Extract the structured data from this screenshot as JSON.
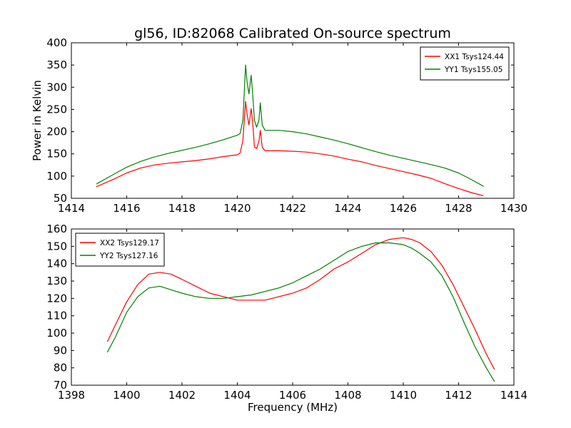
{
  "figure": {
    "title": "gl56, ID:82068 Calibrated On-source spectrum"
  },
  "chart_data": [
    {
      "type": "line",
      "title": "gl56, ID:82068 Calibrated On-source spectrum",
      "xlabel": "",
      "ylabel": "Power in Kelvin",
      "xlim": [
        1414,
        1430
      ],
      "ylim": [
        50,
        400
      ],
      "xticks": [
        "1414",
        "1416",
        "1418",
        "1420",
        "1422",
        "1424",
        "1426",
        "1428",
        "1430"
      ],
      "yticks": [
        "50",
        "100",
        "150",
        "200",
        "250",
        "300",
        "350",
        "400"
      ],
      "grid": false,
      "legend_position": "top-right",
      "series": [
        {
          "name": "XX1 Tsys124.44",
          "color": "#ff0000",
          "x": [
            1414.9,
            1415.5,
            1416.0,
            1416.5,
            1417.0,
            1417.5,
            1418.0,
            1418.5,
            1419.0,
            1419.5,
            1420.0,
            1420.1,
            1420.2,
            1420.3,
            1420.35,
            1420.42,
            1420.5,
            1420.55,
            1420.62,
            1420.7,
            1420.78,
            1420.83,
            1420.9,
            1421.0,
            1421.5,
            1422.0,
            1422.5,
            1423.0,
            1423.5,
            1424.0,
            1424.5,
            1425.0,
            1425.5,
            1426.0,
            1426.5,
            1427.0,
            1427.5,
            1428.0,
            1428.5,
            1428.9
          ],
          "y": [
            76,
            92,
            107,
            118,
            125,
            129,
            132,
            135,
            139,
            144,
            148,
            152,
            180,
            268,
            240,
            215,
            252,
            225,
            165,
            162,
            178,
            203,
            165,
            157,
            157,
            156,
            154,
            150,
            145,
            138,
            132,
            124,
            117,
            110,
            103,
            95,
            83,
            72,
            62,
            56
          ]
        },
        {
          "name": "YY1 Tsys155.05",
          "color": "#008000",
          "x": [
            1414.9,
            1415.5,
            1416.0,
            1416.5,
            1417.0,
            1417.5,
            1418.0,
            1418.5,
            1419.0,
            1419.5,
            1420.0,
            1420.1,
            1420.2,
            1420.3,
            1420.35,
            1420.42,
            1420.5,
            1420.55,
            1420.62,
            1420.7,
            1420.78,
            1420.83,
            1420.9,
            1421.0,
            1421.5,
            1422.0,
            1422.5,
            1423.0,
            1423.5,
            1424.0,
            1424.5,
            1425.0,
            1425.5,
            1426.0,
            1426.5,
            1427.0,
            1427.5,
            1428.0,
            1428.5,
            1428.9
          ],
          "y": [
            82,
            103,
            120,
            133,
            143,
            151,
            158,
            165,
            173,
            182,
            192,
            196,
            225,
            350,
            312,
            285,
            327,
            290,
            225,
            210,
            225,
            265,
            215,
            203,
            203,
            200,
            195,
            188,
            181,
            173,
            164,
            155,
            147,
            140,
            133,
            126,
            118,
            107,
            91,
            77
          ]
        }
      ]
    },
    {
      "type": "line",
      "title": "",
      "xlabel": "Frequency (MHz)",
      "ylabel": "",
      "xlim": [
        1398,
        1414
      ],
      "ylim": [
        70,
        160
      ],
      "xticks": [
        "1398",
        "1400",
        "1402",
        "1404",
        "1406",
        "1408",
        "1410",
        "1412",
        "1414"
      ],
      "yticks": [
        "70",
        "80",
        "90",
        "100",
        "110",
        "120",
        "130",
        "140",
        "150",
        "160"
      ],
      "grid": false,
      "legend_position": "top-left",
      "series": [
        {
          "name": "XX2 Tsys129.17",
          "color": "#ff0000",
          "x": [
            1399.3,
            1399.6,
            1400.0,
            1400.4,
            1400.8,
            1401.2,
            1401.6,
            1402.0,
            1402.5,
            1403.0,
            1403.5,
            1404.0,
            1404.5,
            1405.0,
            1405.5,
            1406.0,
            1406.5,
            1407.0,
            1407.5,
            1408.0,
            1408.5,
            1409.0,
            1409.5,
            1410.0,
            1410.3,
            1410.6,
            1411.0,
            1411.4,
            1411.8,
            1412.2,
            1412.6,
            1413.0,
            1413.3
          ],
          "y": [
            95,
            105,
            118,
            128,
            134,
            135,
            134,
            131,
            127,
            123,
            121,
            119,
            119,
            119,
            121,
            123,
            126,
            131,
            137,
            141,
            146,
            151,
            154,
            155,
            154,
            152,
            147,
            139,
            128,
            115,
            102,
            88,
            79
          ]
        },
        {
          "name": "YY2 Tsys127.16",
          "color": "#008000",
          "x": [
            1399.3,
            1399.6,
            1400.0,
            1400.4,
            1400.8,
            1401.2,
            1401.6,
            1402.0,
            1402.5,
            1403.0,
            1403.5,
            1404.0,
            1404.5,
            1405.0,
            1405.5,
            1406.0,
            1406.5,
            1407.0,
            1407.5,
            1408.0,
            1408.5,
            1409.0,
            1409.5,
            1410.0,
            1410.3,
            1410.6,
            1411.0,
            1411.4,
            1411.8,
            1412.2,
            1412.6,
            1413.0,
            1413.3
          ],
          "y": [
            89,
            98,
            112,
            121,
            126,
            127,
            125,
            123,
            121,
            120,
            120,
            121,
            122,
            124,
            126,
            129,
            133,
            137,
            142,
            147,
            150,
            152,
            152,
            151,
            149,
            146,
            141,
            133,
            121,
            106,
            92,
            80,
            72
          ]
        }
      ]
    }
  ]
}
